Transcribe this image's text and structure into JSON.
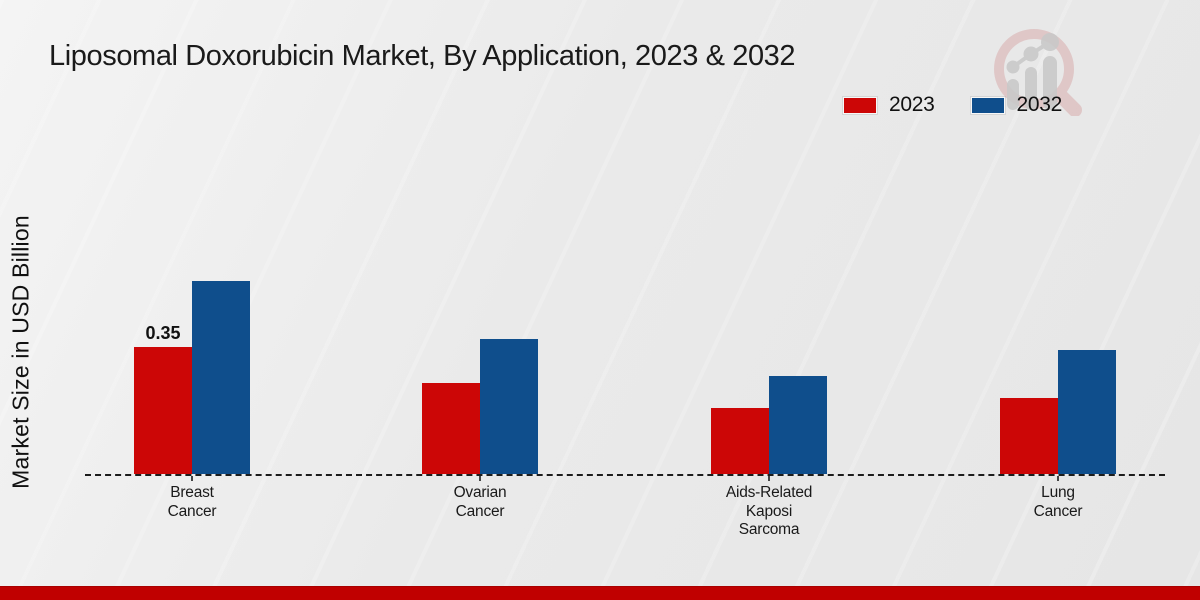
{
  "header": {
    "title": "Liposomal Doxorubicin Market, By Application, 2023 & 2032"
  },
  "logo_name": "magnifier-bar-chart-logo",
  "footer": {
    "bar_color": "#c00000"
  },
  "chart_data": {
    "type": "bar",
    "title": "Liposomal Doxorubicin Market, By Application, 2023 & 2032",
    "xlabel": "",
    "ylabel": "Market Size in USD Billion",
    "categories": [
      "Breast Cancer",
      "Ovarian Cancer",
      "Aids-Related Kaposi Sarcoma",
      "Lung Cancer"
    ],
    "category_label_lines": [
      [
        "Breast",
        "Cancer"
      ],
      [
        "Ovarian",
        "Cancer"
      ],
      [
        "Aids-Related",
        "Kaposi",
        "Sarcoma"
      ],
      [
        "Lung",
        "Cancer"
      ]
    ],
    "series": [
      {
        "name": "2023",
        "color": "#cc0606",
        "values": [
          0.35,
          0.25,
          0.18,
          0.21
        ]
      },
      {
        "name": "2032",
        "color": "#0f4e8c",
        "values": [
          0.53,
          0.37,
          0.27,
          0.34
        ]
      }
    ],
    "bar_labels": [
      {
        "series_index": 0,
        "category_index": 0,
        "text": "0.35"
      }
    ],
    "ylim": [
      0,
      0.55
    ],
    "grid": false,
    "legend_position": "top-right",
    "baseline_style": "dashed",
    "axis_line_color": "#1c1c1c"
  }
}
